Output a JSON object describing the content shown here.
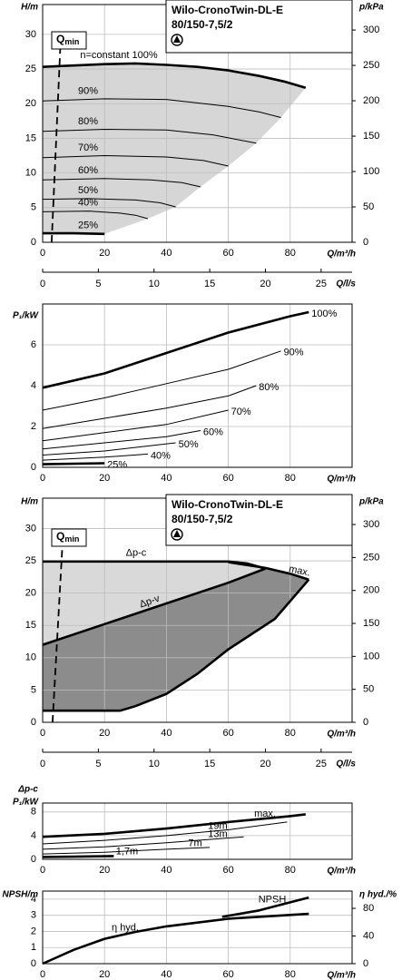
{
  "chart_data": [
    {
      "type": "family",
      "title": "Wilo-CronoTwin-DL-E",
      "subtitle": "80/150-7,5/2",
      "ylabel": "H/m",
      "y2label": "p/kPa",
      "xlabel": "Q/m³/h",
      "x2label": "Q/l/s",
      "xlim": [
        0,
        100
      ],
      "xticks": [
        0,
        20,
        40,
        60,
        80
      ],
      "x2lim": [
        0,
        27.78
      ],
      "x2ticks": [
        0,
        5,
        10,
        15,
        20,
        25
      ],
      "ylim": [
        0,
        34.3
      ],
      "yticks": [
        0,
        5,
        10,
        15,
        20,
        25,
        30
      ],
      "y2lim": [
        0,
        336
      ],
      "y2ticks": [
        0,
        50,
        100,
        150,
        200,
        250,
        300
      ],
      "grid": true,
      "qmin": {
        "label": [
          "Q",
          "min"
        ],
        "x": [
          2.9,
          5.9
        ],
        "values": [
          0,
          30
        ]
      },
      "series": [
        {
          "name": "n=constant 100%",
          "color": "#000000",
          "weight": "heavy",
          "fill": "#d6d6d6",
          "x": [
            0,
            10,
            20,
            30,
            40,
            50,
            60,
            70,
            78,
            85
          ],
          "values": [
            25.3,
            25.5,
            25.7,
            25.8,
            25.6,
            25.3,
            24.8,
            24.0,
            23.2,
            22.3
          ]
        },
        {
          "name": "90%",
          "color": "#000000",
          "x": [
            0,
            20,
            40,
            60,
            70,
            77
          ],
          "values": [
            20.4,
            20.7,
            20.6,
            19.6,
            18.8,
            18.0
          ]
        },
        {
          "name": "80%",
          "color": "#000000",
          "x": [
            0,
            20,
            40,
            55,
            69
          ],
          "values": [
            16.0,
            16.3,
            16.2,
            15.5,
            14.3
          ]
        },
        {
          "name": "70%",
          "color": "#000000",
          "x": [
            0,
            20,
            40,
            52,
            60
          ],
          "values": [
            12.2,
            12.5,
            12.3,
            11.8,
            11.0
          ]
        },
        {
          "name": "60%",
          "color": "#000000",
          "x": [
            0,
            20,
            35,
            45,
            51
          ],
          "values": [
            9.0,
            9.2,
            9.0,
            8.6,
            8.0
          ]
        },
        {
          "name": "50%",
          "color": "#000000",
          "x": [
            0,
            15,
            30,
            38,
            43
          ],
          "values": [
            6.2,
            6.3,
            6.1,
            5.7,
            5.1
          ]
        },
        {
          "name": "40%",
          "color": "#000000",
          "x": [
            0,
            15,
            25,
            30,
            34
          ],
          "values": [
            4.4,
            4.5,
            4.2,
            3.9,
            3.4
          ]
        },
        {
          "name": "25%",
          "color": "#000000",
          "weight": "heavy",
          "x": [
            0,
            10,
            20
          ],
          "values": [
            1.3,
            1.3,
            1.2
          ]
        }
      ]
    },
    {
      "type": "family",
      "ylabel": "P₁/kW",
      "xlabel": "Q/m³/h",
      "xlim": [
        0,
        100
      ],
      "xticks": [
        0,
        20,
        40,
        60,
        80
      ],
      "ylim": [
        0,
        8
      ],
      "yticks": [
        0,
        2,
        4,
        6
      ],
      "grid": true,
      "series": [
        {
          "name": "100%",
          "color": "#000000",
          "weight": "heavy",
          "x": [
            0,
            20,
            40,
            60,
            80,
            86
          ],
          "values": [
            3.9,
            4.6,
            5.6,
            6.6,
            7.4,
            7.6
          ]
        },
        {
          "name": "90%",
          "color": "#000000",
          "x": [
            0,
            20,
            40,
            60,
            77
          ],
          "values": [
            2.8,
            3.4,
            4.1,
            4.8,
            5.7
          ]
        },
        {
          "name": "80%",
          "color": "#000000",
          "x": [
            0,
            20,
            40,
            60,
            69
          ],
          "values": [
            1.9,
            2.4,
            2.9,
            3.5,
            4.0
          ]
        },
        {
          "name": "70%",
          "color": "#000000",
          "x": [
            0,
            20,
            40,
            60
          ],
          "values": [
            1.3,
            1.7,
            2.1,
            2.8
          ]
        },
        {
          "name": "60%",
          "color": "#000000",
          "x": [
            0,
            20,
            40,
            51
          ],
          "values": [
            0.9,
            1.2,
            1.5,
            1.8
          ]
        },
        {
          "name": "50%",
          "color": "#000000",
          "x": [
            0,
            20,
            43
          ],
          "values": [
            0.6,
            0.8,
            1.2
          ]
        },
        {
          "name": "40%",
          "color": "#000000",
          "x": [
            0,
            20,
            34
          ],
          "values": [
            0.35,
            0.5,
            0.65
          ]
        },
        {
          "name": "25%",
          "color": "#000000",
          "weight": "heavy",
          "x": [
            0,
            20
          ],
          "values": [
            0.15,
            0.2
          ]
        }
      ]
    },
    {
      "type": "field",
      "title": "Wilo-CronoTwin-DL-E",
      "subtitle": "80/150-7,5/2",
      "ylabel": "H/m",
      "y2label": "p/kPa",
      "xlabel": "Q/m³/h",
      "x2label": "Q/l/s",
      "xlim": [
        0,
        100
      ],
      "xticks": [
        0,
        20,
        40,
        60,
        80
      ],
      "x2lim": [
        0,
        27.78
      ],
      "x2ticks": [
        0,
        5,
        10,
        15,
        20,
        25
      ],
      "ylim": [
        0,
        34.7
      ],
      "yticks": [
        0,
        5,
        10,
        15,
        20,
        25,
        30
      ],
      "y2lim": [
        0,
        340
      ],
      "y2ticks": [
        0,
        50,
        100,
        150,
        200,
        250,
        300
      ],
      "grid": true,
      "qmin": {
        "label": [
          "Q",
          "min"
        ],
        "x": [
          3.2,
          6.7
        ],
        "values": [
          0,
          30
        ]
      },
      "series": [
        {
          "name": "Δp-c",
          "color": "#000000",
          "weight": "heavy",
          "fill": "#d9d9d9",
          "x": [
            0,
            60,
            66,
            72
          ],
          "values": [
            24.9,
            24.9,
            24.6,
            23.8
          ]
        },
        {
          "name": "Δp-v",
          "color": "#000000",
          "weight": "heavy",
          "fill": "#8c8c8c",
          "x": [
            0,
            20,
            40,
            60,
            72
          ],
          "values": [
            12.0,
            15.2,
            18.4,
            21.6,
            23.8
          ]
        },
        {
          "name": "max.",
          "color": "#000000",
          "weight": "heavy",
          "x": [
            60,
            72,
            80,
            86
          ],
          "values": [
            24.8,
            23.9,
            23.0,
            22.1
          ]
        }
      ],
      "boundary": {
        "color": "#000000",
        "weight": "heavy",
        "x": [
          86,
          75,
          60,
          50,
          40,
          30,
          25,
          0
        ],
        "values": [
          22.1,
          16.0,
          11.3,
          7.5,
          4.4,
          2.5,
          1.8,
          1.8
        ]
      }
    },
    {
      "type": "family",
      "ylabel": [
        "Δp-c",
        "P₁/kW"
      ],
      "xlabel": "Q/m³/h",
      "xlim": [
        0,
        100
      ],
      "xticks": [
        0,
        20,
        40,
        60,
        80
      ],
      "ylim": [
        0,
        9.5
      ],
      "yticks": [
        0,
        4,
        8
      ],
      "grid": true,
      "series": [
        {
          "name": "max.",
          "color": "#000000",
          "weight": "heavy",
          "x": [
            0,
            20,
            40,
            60,
            80,
            85
          ],
          "values": [
            3.8,
            4.3,
            5.2,
            6.3,
            7.3,
            7.6
          ]
        },
        {
          "name": "19m",
          "color": "#000000",
          "x": [
            0,
            20,
            40,
            60,
            79
          ],
          "values": [
            2.6,
            3.2,
            4.0,
            5.0,
            6.3
          ]
        },
        {
          "name": "13m",
          "color": "#000000",
          "x": [
            0,
            20,
            40,
            60,
            65
          ],
          "values": [
            1.7,
            2.1,
            2.8,
            3.6,
            3.8
          ]
        },
        {
          "name": "7m",
          "color": "#000000",
          "x": [
            0,
            20,
            40,
            54
          ],
          "values": [
            0.9,
            1.2,
            1.7,
            2.0
          ]
        },
        {
          "name": "1,7m",
          "color": "#000000",
          "weight": "heavy",
          "x": [
            0,
            10,
            23
          ],
          "values": [
            0.4,
            0.45,
            0.55
          ]
        }
      ]
    },
    {
      "type": "line",
      "ylabel": "NPSH/m",
      "y2label": "η hyd./%",
      "xlabel": "Q/m³/h",
      "xlim": [
        0,
        100
      ],
      "xticks": [
        0,
        20,
        40,
        60,
        80
      ],
      "ylim": [
        0,
        4.5
      ],
      "yticks": [
        0,
        1,
        2,
        3,
        4
      ],
      "y2lim": [
        0,
        105
      ],
      "y2ticks": [
        0,
        40,
        80
      ],
      "grid": true,
      "series": [
        {
          "name": "NPSH",
          "color": "#000000",
          "weight": "heavy",
          "x": [
            58,
            70,
            80,
            86
          ],
          "values": [
            2.9,
            3.3,
            3.8,
            4.1
          ]
        },
        {
          "name": "η hyd.",
          "color": "#000000",
          "weight": "heavy",
          "axis": "y2",
          "x": [
            0,
            10,
            20,
            30,
            40,
            60,
            86
          ],
          "values": [
            0,
            20,
            36,
            46,
            54,
            65,
            72
          ]
        }
      ]
    }
  ]
}
